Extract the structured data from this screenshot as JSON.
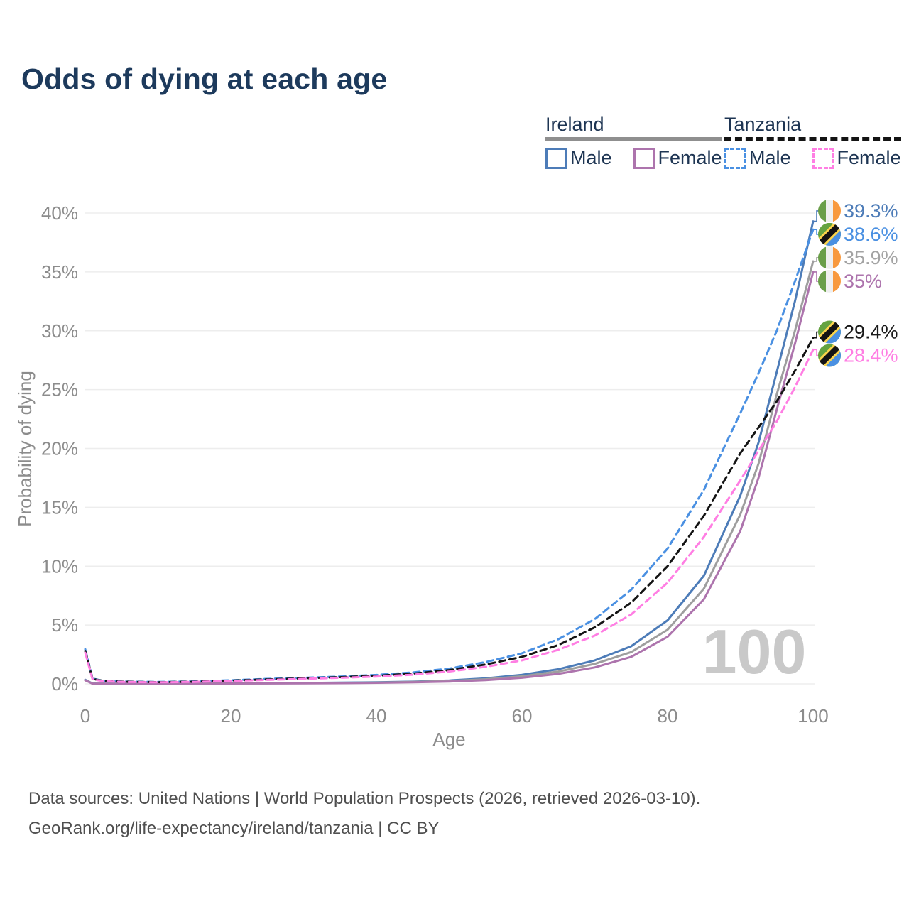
{
  "header": {
    "title": "Odds of dying at each age"
  },
  "legend": {
    "ireland": {
      "label": "Ireland",
      "male": "Male",
      "female": "Female"
    },
    "tanzania": {
      "label": "Tanzania",
      "male": "Male",
      "female": "Female"
    }
  },
  "watermark": "100",
  "source": {
    "line1": "Data sources: United Nations | World Population Prospects (2026, retrieved 2026-03-10).",
    "line2": "GeoRank.org/life-expectancy/ireland/tanzania | CC BY"
  },
  "colors": {
    "title": "#1d3a5c",
    "legend_text": "#1e3553",
    "axis_text": "#8c8c8c",
    "gridline": "#ededed",
    "watermark": "#c9c9c9",
    "ireland_male": "#4d7cb8",
    "ireland_female": "#ad74ad",
    "ireland_combined": "#8f8f8f",
    "tanzania_male": "#4a90e2",
    "tanzania_female": "#ff7ee3",
    "tanzania_combined": "#141414"
  },
  "chart_data": {
    "type": "line",
    "title": "Odds of dying at each age",
    "xlabel": "Age",
    "ylabel": "Probability of dying",
    "xlim": [
      0,
      100
    ],
    "ylim": [
      0,
      40
    ],
    "xticks": [
      0,
      20,
      40,
      60,
      80,
      100
    ],
    "yticks": [
      0,
      5,
      10,
      15,
      20,
      25,
      30,
      35,
      40
    ],
    "ytick_suffix": "%",
    "grid": "horizontal",
    "legend_position": "top-right",
    "current_age_watermark": 100,
    "x": [
      0,
      1,
      2,
      3,
      5,
      10,
      15,
      20,
      25,
      30,
      35,
      40,
      45,
      50,
      55,
      60,
      65,
      70,
      75,
      80,
      85,
      90,
      92.5,
      95,
      97.5,
      100
    ],
    "series": [
      {
        "name": "Ireland Male",
        "country": "Ireland",
        "sex": "Male",
        "color": "#4d7cb8",
        "dash": "solid",
        "flag": "ireland",
        "end_value": 39.3,
        "end_label": "39.3%",
        "label_color": "#4d7cb8",
        "values": [
          0.35,
          0.03,
          0.02,
          0.015,
          0.01,
          0.01,
          0.04,
          0.06,
          0.07,
          0.08,
          0.1,
          0.13,
          0.19,
          0.29,
          0.47,
          0.77,
          1.25,
          2.0,
          3.2,
          5.4,
          9.2,
          16.0,
          20.5,
          26.5,
          32.5,
          39.3
        ]
      },
      {
        "name": "Tanzania Male",
        "country": "Tanzania",
        "sex": "Male",
        "color": "#4a90e2",
        "dash": "dashed",
        "flag": "tanzania",
        "end_value": 38.6,
        "end_label": "38.6%",
        "label_color": "#4a90e2",
        "values": [
          2.95,
          0.45,
          0.32,
          0.25,
          0.2,
          0.16,
          0.21,
          0.31,
          0.42,
          0.52,
          0.62,
          0.76,
          0.97,
          1.3,
          1.85,
          2.6,
          3.8,
          5.5,
          8.0,
          11.5,
          16.5,
          23.0,
          26.4,
          30.0,
          34.2,
          38.6
        ]
      },
      {
        "name": "Ireland",
        "country": "Ireland",
        "sex": "Both",
        "color": "#9e9e9e",
        "dash": "solid",
        "flag": "ireland",
        "end_value": 35.9,
        "end_label": "35.9%",
        "label_color": "#a3a3a3",
        "values": [
          0.32,
          0.025,
          0.018,
          0.013,
          0.01,
          0.01,
          0.03,
          0.045,
          0.05,
          0.06,
          0.08,
          0.11,
          0.16,
          0.24,
          0.39,
          0.64,
          1.05,
          1.7,
          2.7,
          4.6,
          8.1,
          14.4,
          18.7,
          24.6,
          30.0,
          35.9
        ]
      },
      {
        "name": "Ireland Female",
        "country": "Ireland",
        "sex": "Female",
        "color": "#ad74ad",
        "dash": "solid",
        "flag": "ireland",
        "end_value": 35.0,
        "end_label": "35%",
        "label_color": "#ad74ad",
        "values": [
          0.3,
          0.02,
          0.015,
          0.01,
          0.008,
          0.008,
          0.02,
          0.03,
          0.035,
          0.045,
          0.06,
          0.09,
          0.13,
          0.2,
          0.32,
          0.52,
          0.85,
          1.4,
          2.3,
          4.0,
          7.2,
          13.0,
          17.5,
          23.3,
          28.9,
          35.0
        ]
      },
      {
        "name": "Tanzania",
        "country": "Tanzania",
        "sex": "Both",
        "color": "#141414",
        "dash": "dashed",
        "flag": "tanzania",
        "end_value": 29.4,
        "end_label": "29.4%",
        "label_color": "#1a1a1a",
        "values": [
          2.8,
          0.42,
          0.3,
          0.235,
          0.185,
          0.145,
          0.19,
          0.28,
          0.38,
          0.47,
          0.57,
          0.69,
          0.87,
          1.17,
          1.65,
          2.3,
          3.3,
          4.8,
          6.9,
          10.0,
          14.3,
          19.6,
          21.8,
          24.0,
          26.6,
          29.4
        ]
      },
      {
        "name": "Tanzania Female",
        "country": "Tanzania",
        "sex": "Female",
        "color": "#ff7ee3",
        "dash": "dashed",
        "flag": "tanzania",
        "end_value": 28.4,
        "end_label": "28.4%",
        "label_color": "#ff7ee3",
        "values": [
          2.65,
          0.4,
          0.28,
          0.22,
          0.17,
          0.13,
          0.17,
          0.25,
          0.34,
          0.43,
          0.52,
          0.62,
          0.78,
          1.05,
          1.45,
          2.0,
          2.9,
          4.1,
          5.9,
          8.6,
          12.5,
          17.3,
          19.8,
          22.3,
          25.2,
          28.4
        ]
      }
    ],
    "flag_colors": {
      "ireland": {
        "green": "#6a9e49",
        "white": "#efefef",
        "orange": "#f8993e"
      },
      "tanzania": {
        "green": "#64a340",
        "blue": "#4a90e2",
        "black": "#141414",
        "yellow": "#fbd44b"
      }
    }
  }
}
